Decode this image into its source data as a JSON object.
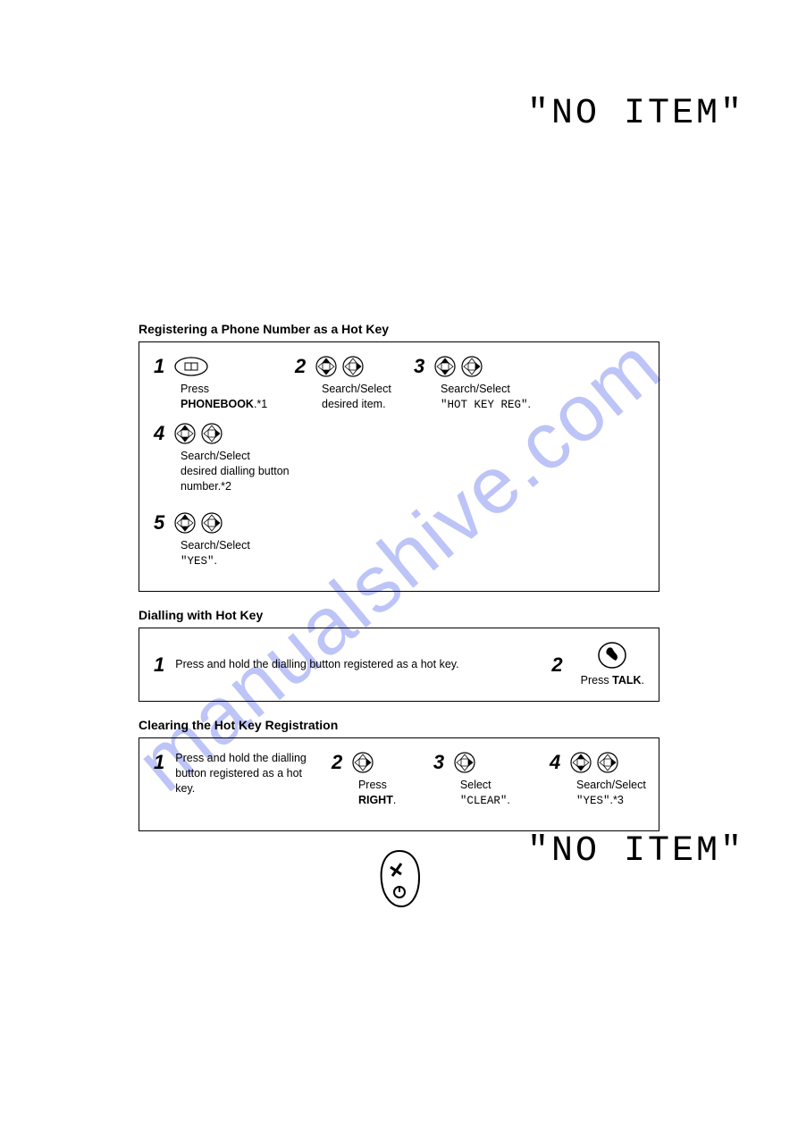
{
  "watermark_text": "manualshive.com",
  "no_item_text": "\"NO ITEM\"",
  "section1": {
    "title": "Registering a Phone Number as a Hot Key",
    "steps": {
      "s1": {
        "num": "1",
        "line1": "Press",
        "bold": "PHONEBOOK",
        "tail": ".*1"
      },
      "s2": {
        "num": "2",
        "line1": "Search/Select",
        "line2": "desired item."
      },
      "s3": {
        "num": "3",
        "line1": "Search/Select",
        "mono": "\"HOT KEY REG\"",
        "tail": "."
      },
      "s4": {
        "num": "4",
        "line1": "Search/Select",
        "line2": "desired dialling button",
        "line3": "number.*2"
      },
      "s5": {
        "num": "5",
        "line1": "Search/Select",
        "mono": "\"YES\"",
        "tail": "."
      }
    }
  },
  "section2": {
    "title": "Dialling with Hot Key",
    "steps": {
      "s1": {
        "num": "1",
        "text": "Press and hold the dialling button registered as a hot key."
      },
      "s2": {
        "num": "2",
        "line1": "Press ",
        "bold": "TALK",
        "tail": "."
      }
    }
  },
  "section3": {
    "title": "Clearing the Hot Key Registration",
    "steps": {
      "s1": {
        "num": "1",
        "text": "Press and hold the dialling button registered as a hot key."
      },
      "s2": {
        "num": "2",
        "line1": "Press ",
        "bold": "RIGHT",
        "tail": "."
      },
      "s3": {
        "num": "3",
        "line1": "Select ",
        "mono": "\"CLEAR\"",
        "tail": "."
      },
      "s4": {
        "num": "4",
        "line1": "Search/Select",
        "mono": "\"YES\"",
        "tail": ".*3"
      }
    }
  }
}
